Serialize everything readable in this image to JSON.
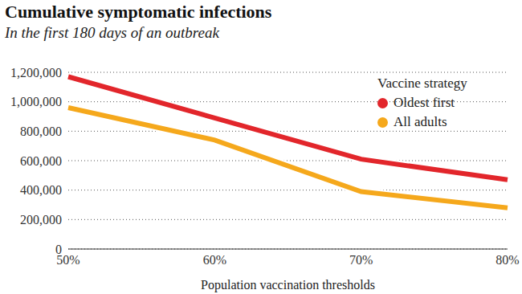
{
  "chart_data": {
    "type": "line",
    "title": "Cumulative symptomatic infections",
    "subtitle": "In the first 180 days of an outbreak",
    "x_label": "Population vaccination thresholds",
    "legend_title": "Vaccine strategy",
    "categories": [
      "50%",
      "60%",
      "70%",
      "80%"
    ],
    "series": [
      {
        "name": "Oldest first",
        "color": "#e2262b",
        "values": [
          1170000,
          890000,
          610000,
          470000
        ],
        "marker": "none",
        "line_style": "solid"
      },
      {
        "name": "All adults",
        "color": "#f5a81c",
        "values": [
          960000,
          740000,
          390000,
          280000
        ],
        "marker": "none",
        "line_style": "solid"
      }
    ],
    "ylim": [
      0,
      1200000
    ],
    "yticks": [
      0,
      {
        "value": 200000,
        "label": "200,000"
      },
      {
        "value": 400000,
        "label": "400,000"
      },
      {
        "value": 600000,
        "label": "600,000"
      },
      {
        "value": 800000,
        "label": "800,000"
      },
      {
        "value": 1000000,
        "label": "1,000,000"
      },
      {
        "value": 1200000,
        "label": "1,200,000"
      }
    ],
    "grid": true,
    "legend": "top-right"
  }
}
